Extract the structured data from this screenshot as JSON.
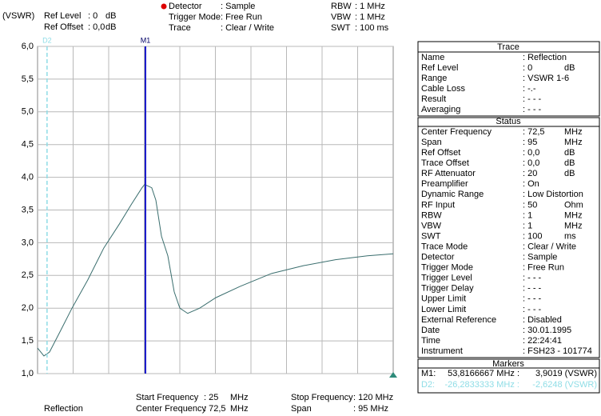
{
  "header": {
    "unit": "(VSWR)",
    "left": [
      [
        "Ref Level",
        ": 0",
        "dB"
      ],
      [
        "Ref Offset",
        ": 0,0",
        "dB"
      ]
    ],
    "middle": [
      [
        "Detector",
        ": Sample"
      ],
      [
        "Trigger Mode",
        ": Free Run"
      ],
      [
        "Trace",
        ": Clear / Write"
      ]
    ],
    "right": [
      [
        "RBW",
        ": 1 MHz"
      ],
      [
        "VBW",
        ": 1 MHz"
      ],
      [
        "SWT",
        ": 100 ms"
      ]
    ]
  },
  "footer": {
    "trace_name": "Reflection",
    "left": [
      [
        "Start Frequency",
        ": 25",
        "MHz"
      ],
      [
        "Center Frequency",
        ": 72,5",
        "MHz"
      ]
    ],
    "right": [
      [
        "Stop Frequency",
        ": 120 MHz"
      ],
      [
        "Span",
        ": 95 MHz"
      ]
    ]
  },
  "panel": {
    "trace": {
      "title": "Trace",
      "rows": [
        [
          "Name",
          ": Reflection"
        ],
        [
          "Ref Level",
          ": 0",
          "dB"
        ],
        [
          "Range",
          ": VSWR 1-6"
        ],
        [
          "Cable Loss",
          ": -.-"
        ],
        [
          "Result",
          ": - - -"
        ],
        [
          "Averaging",
          ": - - -"
        ]
      ]
    },
    "status": {
      "title": "Status",
      "rows": [
        [
          "Center Frequency",
          ": 72,5",
          "MHz"
        ],
        [
          "Span",
          ": 95",
          "MHz"
        ],
        [
          "Ref Offset",
          ": 0,0",
          "dB"
        ],
        [
          "Trace Offset",
          ": 0,0",
          "dB"
        ],
        [
          "RF Attenuator",
          ": 20",
          "dB"
        ],
        [
          "Preamplifier",
          ": On"
        ],
        [
          "Dynamic Range",
          ": Low Distortion"
        ],
        [
          "RF Input",
          ": 50",
          "Ohm"
        ],
        [
          "RBW",
          ": 1",
          "MHz"
        ],
        [
          "VBW",
          ": 1",
          "MHz"
        ],
        [
          "SWT",
          ": 100",
          "ms"
        ],
        [
          "Trace Mode",
          ": Clear / Write"
        ],
        [
          "Detector",
          ": Sample"
        ],
        [
          "Trigger Mode",
          ": Free Run"
        ],
        [
          "Trigger Level",
          ": - - -"
        ],
        [
          "Trigger Delay",
          ": - - -"
        ],
        [
          "Upper Limit",
          ": - - -"
        ],
        [
          "Lower Limit",
          ": - - -"
        ],
        [
          "External Reference",
          ": Disabled"
        ],
        [
          "Date",
          ": 30.01.1995"
        ],
        [
          "Time",
          ": 22:24:41"
        ],
        [
          "Instrument",
          ": FSH23 - 101774"
        ]
      ]
    },
    "markers": {
      "title": "Markers",
      "rows": [
        [
          "M1:",
          "53,8166667 MHz :",
          "3,9019 (VSWR)"
        ],
        [
          "D2:",
          "-26,2833333 MHz :",
          "-2,6248 (VSWR)"
        ]
      ]
    }
  },
  "chart_data": {
    "type": "line",
    "color": "#3a6e6e",
    "grid": true,
    "x": [
      25,
      26.7,
      28.2,
      31,
      34.2,
      38.4,
      42.7,
      46.9,
      50.1,
      52.9,
      53.6,
      55.5,
      56.6,
      58.1,
      59.8,
      61.5,
      63,
      65.1,
      68.3,
      72.6,
      79,
      87.5,
      96.1,
      104.6,
      113.1,
      120
    ],
    "values": [
      1.39,
      1.27,
      1.33,
      1.64,
      2.0,
      2.43,
      2.92,
      3.29,
      3.59,
      3.84,
      3.89,
      3.84,
      3.65,
      3.1,
      2.8,
      2.25,
      2.0,
      1.92,
      2.0,
      2.16,
      2.33,
      2.53,
      2.65,
      2.74,
      2.8,
      2.83
    ],
    "xlim": [
      25,
      120
    ],
    "ylim": [
      1,
      6
    ],
    "yticks": [
      {
        "value": 1,
        "label": "1,0"
      },
      {
        "value": 1.5,
        "label": "1,5"
      },
      {
        "value": 2,
        "label": "2,0"
      },
      {
        "value": 2.5,
        "label": "2,5"
      },
      {
        "value": 3,
        "label": "3,0"
      },
      {
        "value": 3.5,
        "label": "3,5"
      },
      {
        "value": 4,
        "label": "4,0"
      },
      {
        "value": 4.5,
        "label": "4,5"
      },
      {
        "value": 5,
        "label": "5,0"
      },
      {
        "value": 5.5,
        "label": "5,5"
      },
      {
        "value": 6,
        "label": "6,0"
      }
    ],
    "markers": [
      {
        "label": "M1",
        "x": 53.8166667,
        "color": "#1a1acc"
      },
      {
        "label": "D2",
        "x": 27.5333,
        "color": "#8fdde6"
      }
    ]
  }
}
